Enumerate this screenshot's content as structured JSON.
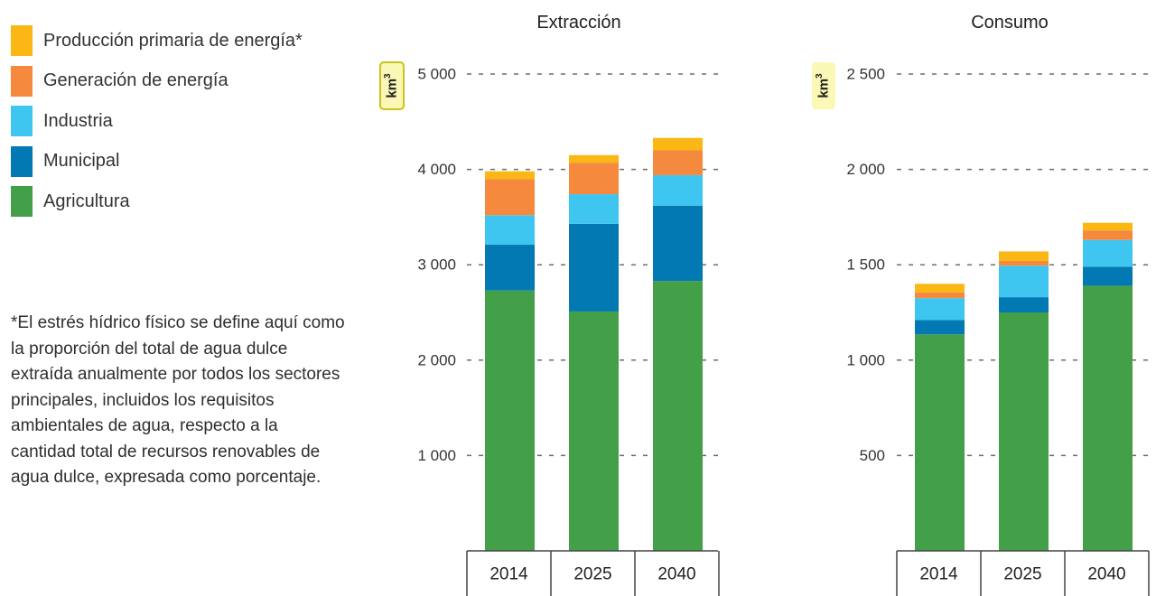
{
  "legend": [
    {
      "label": "Producción primaria de energía*",
      "color": "#fbb714"
    },
    {
      "label": "Generación de energía",
      "color": "#f58a3f"
    },
    {
      "label": "Industria",
      "color": "#3ec6f1"
    },
    {
      "label": "Municipal",
      "color": "#0279b3"
    },
    {
      "label": "Agricultura",
      "color": "#44a048"
    }
  ],
  "footnote": "*El estrés hídrico físico se define aquí como la proporción del total de agua dulce extraída anualmente por todos los sectores principales, incluidos los requisitos ambientales de agua, respecto a la cantidad total de recursos renovables de agua dulce, expresada como porcentaje.",
  "chart_data": [
    {
      "type": "bar",
      "stacked": true,
      "title": "Extracción",
      "ylabel": "km³",
      "unit": {
        "base": "km",
        "sup": "3"
      },
      "categories": [
        "2014",
        "2025",
        "2040"
      ],
      "ylim": [
        0,
        5000
      ],
      "yticks": [
        1000,
        2000,
        3000,
        4000,
        5000
      ],
      "ytick_labels": [
        "1 000",
        "2 000",
        "3 000",
        "4 000",
        "5 000"
      ],
      "grid": true,
      "series": [
        {
          "name": "Agricultura",
          "values": [
            2730,
            2510,
            2830
          ]
        },
        {
          "name": "Municipal",
          "values": [
            480,
            920,
            790
          ]
        },
        {
          "name": "Industria",
          "values": [
            310,
            310,
            320
          ]
        },
        {
          "name": "Generación de energía",
          "values": [
            380,
            330,
            260
          ]
        },
        {
          "name": "Producción primaria de energía*",
          "values": [
            80,
            80,
            130
          ]
        }
      ]
    },
    {
      "type": "bar",
      "stacked": true,
      "title": "Consumo",
      "ylabel": "km³",
      "unit": {
        "base": "km",
        "sup": "3"
      },
      "categories": [
        "2014",
        "2025",
        "2040"
      ],
      "ylim": [
        0,
        2500
      ],
      "yticks": [
        500,
        1000,
        1500,
        2000,
        2500
      ],
      "ytick_labels": [
        "500",
        "1 000",
        "1 500",
        "2 000",
        "2 500"
      ],
      "grid": true,
      "series": [
        {
          "name": "Agricultura",
          "values": [
            1135,
            1250,
            1390
          ]
        },
        {
          "name": "Municipal",
          "values": [
            75,
            80,
            100
          ]
        },
        {
          "name": "Industria",
          "values": [
            115,
            165,
            140
          ]
        },
        {
          "name": "Generación de energía",
          "values": [
            30,
            25,
            50
          ]
        },
        {
          "name": "Producción primaria de energía*",
          "values": [
            45,
            50,
            40
          ]
        }
      ]
    }
  ]
}
